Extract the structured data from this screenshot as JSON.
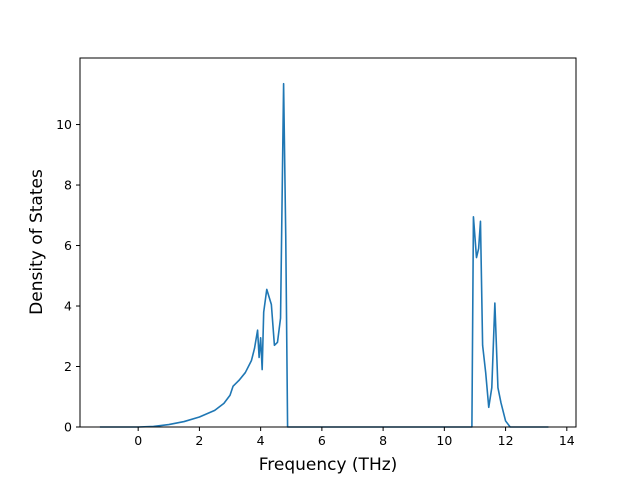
{
  "chart_data": {
    "type": "line",
    "title": "",
    "xlabel": "Frequency (THz)",
    "ylabel": "Density of States",
    "xlim": [
      -1.9,
      14.3
    ],
    "ylim": [
      0,
      12.2
    ],
    "x_ticks": [
      0,
      2,
      4,
      6,
      8,
      10,
      12,
      14
    ],
    "y_ticks": [
      0,
      2,
      4,
      6,
      8,
      10
    ],
    "grid": false,
    "legend": "none",
    "series": [
      {
        "color": "#1f77b4",
        "x": [
          -1.25,
          0.0,
          0.5,
          1.0,
          1.5,
          2.0,
          2.5,
          2.8,
          3.0,
          3.1,
          3.3,
          3.5,
          3.7,
          3.8,
          3.9,
          3.95,
          4.0,
          4.05,
          4.1,
          4.2,
          4.35,
          4.45,
          4.55,
          4.65,
          4.75,
          4.82,
          4.88,
          4.93,
          4.98,
          5.5,
          8.0,
          10.9,
          10.95,
          11.05,
          11.12,
          11.18,
          11.25,
          11.35,
          11.45,
          11.55,
          11.65,
          11.75,
          11.85,
          12.0,
          12.15,
          12.2,
          13.4
        ],
        "y": [
          0.0,
          0.0,
          0.02,
          0.08,
          0.18,
          0.33,
          0.55,
          0.78,
          1.05,
          1.35,
          1.55,
          1.8,
          2.2,
          2.6,
          3.2,
          2.3,
          2.95,
          1.9,
          3.8,
          4.55,
          4.05,
          2.7,
          2.8,
          3.6,
          11.35,
          6.3,
          0.0,
          0.0,
          0.0,
          0.0,
          0.0,
          0.0,
          6.95,
          5.6,
          5.9,
          6.8,
          2.7,
          1.8,
          0.65,
          1.3,
          4.1,
          1.3,
          0.8,
          0.2,
          0.0,
          0.0,
          0.0
        ]
      }
    ]
  }
}
